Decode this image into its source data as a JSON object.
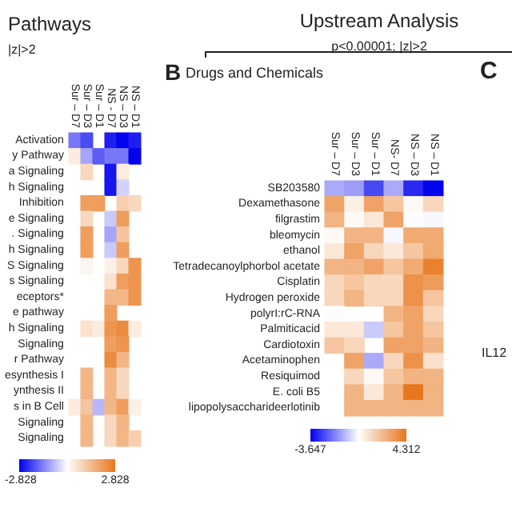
{
  "chart_data": [
    {
      "type": "heatmap",
      "title": "Pathways",
      "subtitle": "|z|>2",
      "categories": [
        "Sur – D7",
        "Sur – D3",
        "Sur – D1",
        "NS - D7",
        "NS – D3",
        "NS – D1"
      ],
      "y_categories": [
        "Activation",
        "y Pathway",
        "a Signaling",
        "h Signaling",
        "Inhibition",
        "e Signaling",
        ". Signaling",
        "h Signaling",
        "S Signaling",
        "s Signaling",
        "eceptors*",
        "e pathway",
        "h Signaling",
        "Signaling",
        "r Pathway",
        "esynthesis I",
        "ynthesis II",
        "s in B Cell",
        "Signaling",
        "Signaling"
      ],
      "cells": [
        [
          -1.5,
          -2,
          null,
          -2.5,
          -2.8,
          -2.5
        ],
        [
          0.4,
          -1,
          -1.8,
          -1.5,
          -1.5,
          -2.8
        ],
        [
          null,
          0.8,
          null,
          -2.6,
          0.4,
          null
        ],
        [
          null,
          null,
          null,
          -2.6,
          -0.5,
          null
        ],
        [
          null,
          2,
          2,
          null,
          1,
          0.8
        ],
        [
          null,
          0.8,
          null,
          -0.6,
          2,
          null
        ],
        [
          null,
          2,
          null,
          -1,
          1.2,
          null
        ],
        [
          null,
          2,
          null,
          -0.6,
          2,
          null
        ],
        [
          null,
          0.2,
          null,
          0.3,
          0.8,
          2.2
        ],
        [
          null,
          null,
          null,
          0.6,
          2,
          2.2
        ],
        [
          null,
          null,
          null,
          1.5,
          1.5,
          2.2
        ],
        [
          null,
          null,
          null,
          2,
          null,
          null
        ],
        [
          null,
          0.6,
          0.4,
          2.2,
          2.4,
          0.4
        ],
        [
          null,
          null,
          null,
          2,
          2.2,
          null
        ],
        [
          null,
          null,
          null,
          2.4,
          1.5,
          null
        ],
        [
          null,
          1.5,
          null,
          1.5,
          0.8,
          null
        ],
        [
          null,
          1.5,
          null,
          1.5,
          0.8,
          null
        ],
        [
          0.4,
          1.2,
          -0.8,
          1.5,
          2,
          0.3
        ],
        [
          null,
          1.5,
          null,
          0.8,
          1.5,
          null
        ],
        [
          null,
          1.5,
          null,
          0.8,
          1.5,
          1
        ]
      ],
      "clim": [
        -2.828,
        2.828
      ],
      "cticks": [
        -2.828,
        2.828
      ]
    },
    {
      "type": "heatmap",
      "title": "Upstream Analysis",
      "subtitle": "p<0.00001; |z|>2",
      "annotations": [
        "B",
        "Drugs and Chemicals"
      ],
      "categories": [
        "Sur – D7",
        "Sur – D3",
        "Sur – D1",
        "NS- D7",
        "NS – D3",
        "NS – D1"
      ],
      "y_categories": [
        "SB203580",
        "Dexamethasone",
        "filgrastim",
        "bleomycin",
        "ethanol",
        "Tetradecanoylphorbol acetate",
        "Cisplatin",
        "Hydrogen peroxide",
        "polyrI:rC-RNA",
        "Palmiticacid",
        "Cardiotoxin",
        "Acetaminophen",
        "Resiquimod",
        "E. coli B5",
        "lipopolysaccharideerlotinib"
      ],
      "cells": [
        [
          -1,
          -1.2,
          -2.5,
          -1,
          -3,
          -3.6
        ],
        [
          3,
          0.8,
          3,
          2,
          0.5,
          1.5
        ],
        [
          2.5,
          0.5,
          1,
          3,
          0.3,
          0.2
        ],
        [
          0.5,
          2.5,
          2.5,
          0.2,
          2.8,
          2.8
        ],
        [
          1,
          3,
          1.5,
          1,
          2,
          2.8
        ],
        [
          2.5,
          2.5,
          3,
          2,
          2.8,
          4
        ],
        [
          1.5,
          2,
          1.5,
          1.5,
          3.5,
          3.2
        ],
        [
          1.5,
          2.5,
          1.5,
          1.5,
          3.5,
          2
        ],
        [
          0.3,
          null,
          null,
          2.5,
          3,
          1.5
        ],
        [
          1,
          1,
          -0.5,
          2,
          3,
          2
        ],
        [
          2,
          1.5,
          null,
          3,
          3,
          2.5
        ],
        [
          null,
          3,
          -1,
          1.5,
          3.5,
          1.2
        ],
        [
          null,
          1.5,
          0.5,
          2,
          2.5,
          2.5
        ],
        [
          null,
          2.5,
          1,
          2.5,
          4.3,
          2.5
        ],
        [
          null,
          2.5,
          2.5,
          2.5,
          2.5,
          2.5
        ]
      ],
      "clim": [
        -3.647,
        4.312
      ],
      "cticks": [
        -3.647,
        4.312
      ]
    },
    {
      "type": "other",
      "title": "C",
      "annotations": [
        "IL12"
      ]
    }
  ]
}
